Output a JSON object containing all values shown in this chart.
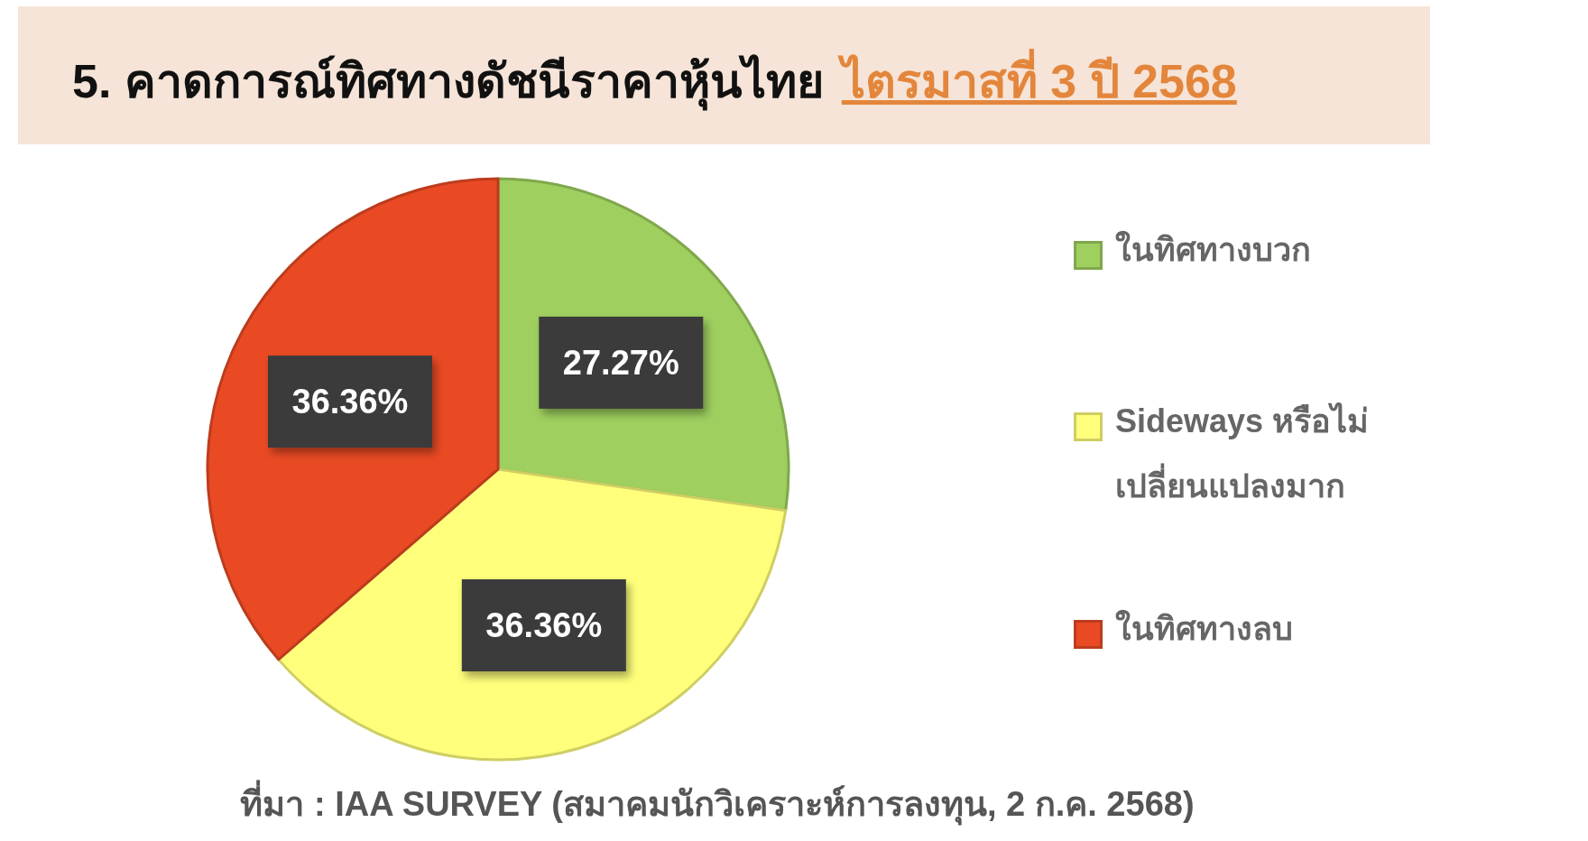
{
  "chart_data": {
    "type": "pie",
    "title": "5. คาดการณ์ทิศทางดัชนีราคาหุ้นไทย",
    "subtitle": "ไตรมาสที่ 3 ปี 2568",
    "categories": [
      "ในทิศทางบวก",
      "Sideways หรือไม่เปลี่ยนแปลงมาก",
      "ในทิศทางลบ"
    ],
    "values": [
      27.27,
      36.36,
      36.36
    ],
    "value_labels": [
      "27.27%",
      "36.36%",
      "36.36%"
    ],
    "colors": [
      "#9ecf5f",
      "#ffff7b",
      "#e94a24"
    ],
    "legend": "right",
    "annotations": [
      "ที่มา : IAA SURVEY (สมาคมนักวิเคราะห์การลงทุน, 2 ก.ค. 2568)"
    ]
  }
}
